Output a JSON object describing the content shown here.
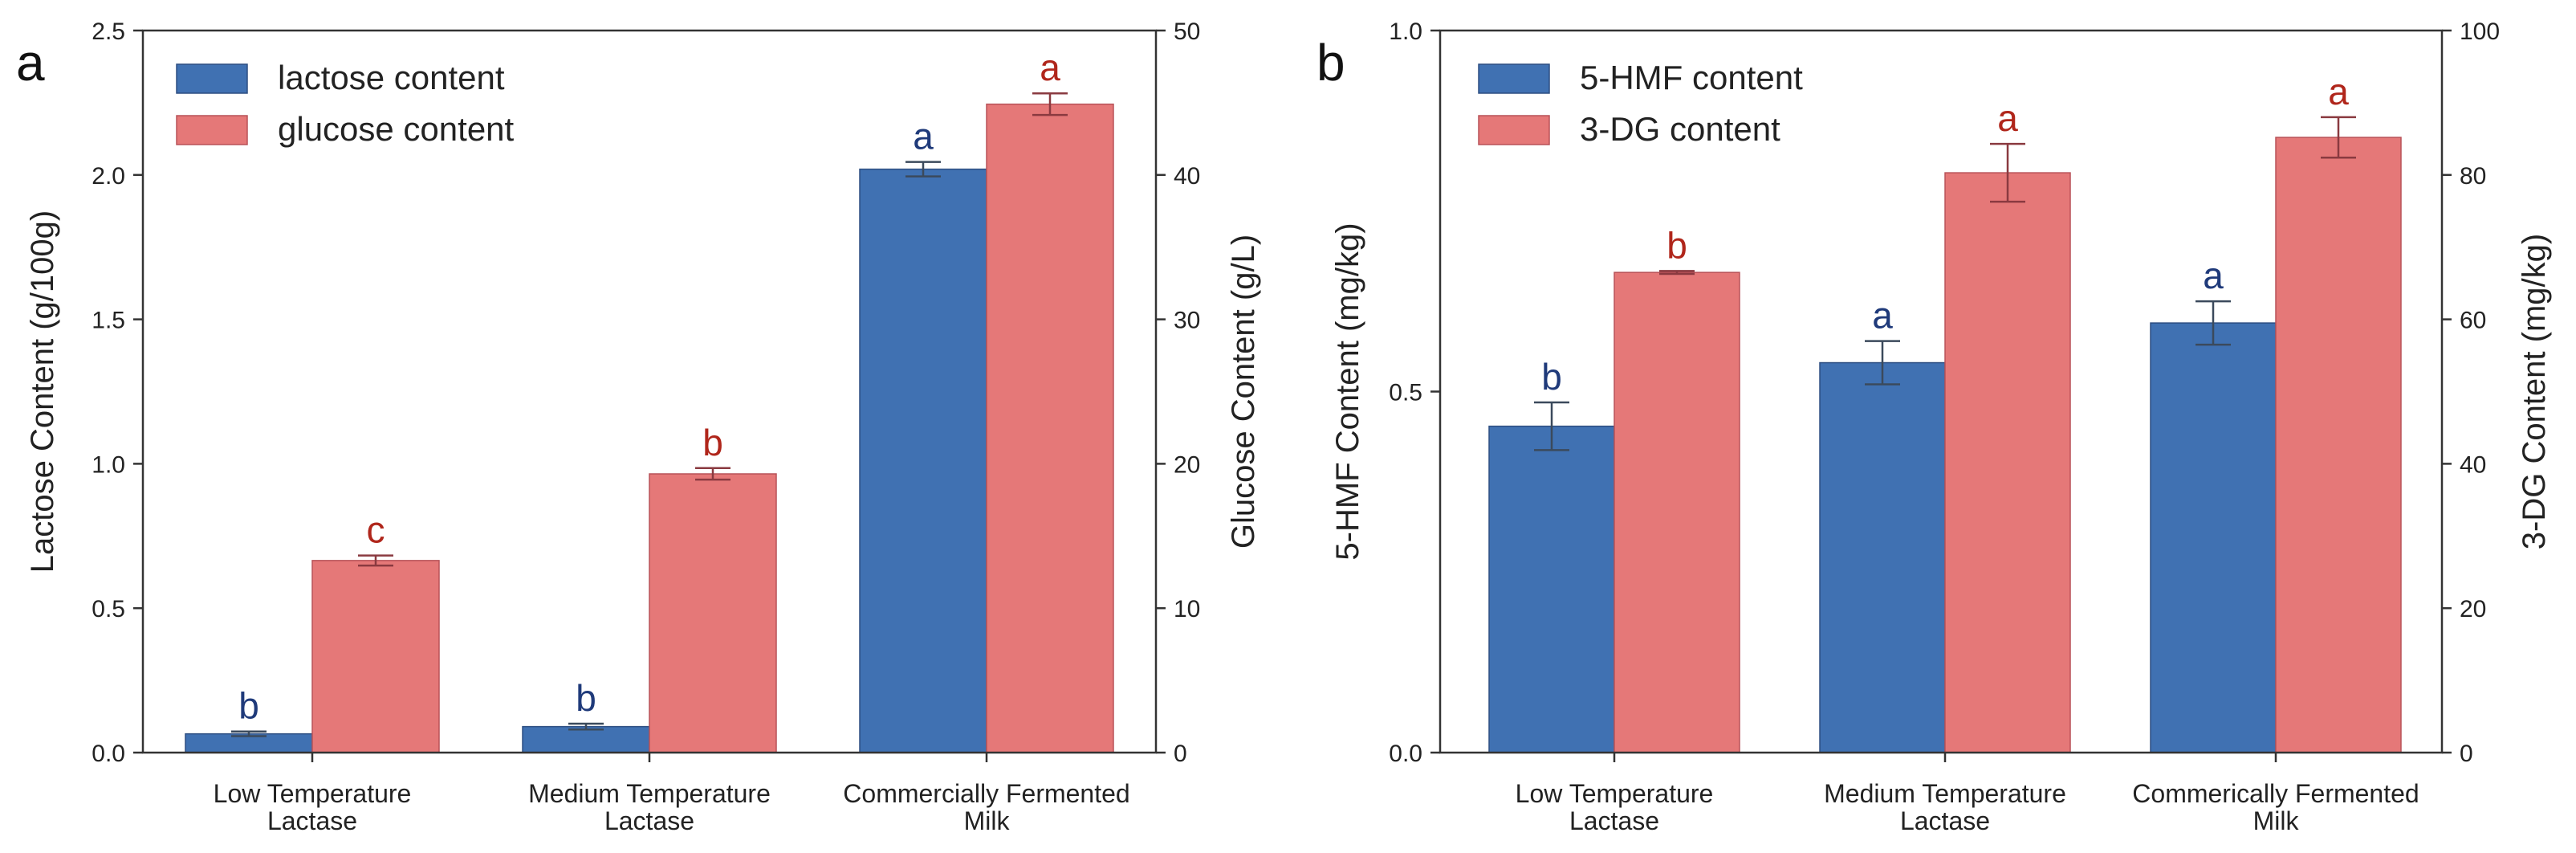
{
  "colors": {
    "blue": "#4071b2",
    "red": "#e57878",
    "blue_label": "#1f3a7a",
    "red_label": "#b0261b",
    "blue_edge": "#2e4f82",
    "red_edge": "#b85258",
    "err_blue": "#3b4a5c",
    "err_red": "#8a3a40"
  },
  "chart_data": [
    {
      "panel": "a",
      "type": "bar",
      "categories": [
        [
          "Low Temperature",
          "Lactase"
        ],
        [
          "Medium Temperature",
          "Lactase"
        ],
        [
          "Commercially Fermented",
          "Milk"
        ]
      ],
      "ylabel_left": "Lactose Content (g/100g)",
      "ylabel_right": "Glucose Content (g/L)",
      "ylim_left": [
        0,
        2.5
      ],
      "ylim_right": [
        0,
        50
      ],
      "yticks_left": [
        "0.0",
        "0.5",
        "1.0",
        "1.5",
        "2.0",
        "2.5"
      ],
      "yticks_right": [
        "0",
        "10",
        "20",
        "30",
        "40",
        "50"
      ],
      "legend_position": "top-left",
      "grid": false,
      "series": [
        {
          "name": "lactose content",
          "axis": "left",
          "color": "blue",
          "values": [
            0.065,
            0.09,
            2.02
          ],
          "errors": [
            0.008,
            0.01,
            0.025
          ],
          "letters": [
            "b",
            "b",
            "a"
          ]
        },
        {
          "name": "glucose content",
          "axis": "right",
          "color": "red",
          "values": [
            13.3,
            19.3,
            44.9
          ],
          "errors": [
            0.35,
            0.4,
            0.75
          ],
          "letters": [
            "c",
            "b",
            "a"
          ]
        }
      ]
    },
    {
      "panel": "b",
      "type": "bar",
      "categories": [
        [
          "Low Temperature",
          "Lactase"
        ],
        [
          "Medium Temperature",
          "Lactase"
        ],
        [
          "Commerically Fermented",
          "Milk"
        ]
      ],
      "ylabel_left": "5-HMF Content (mg/kg)",
      "ylabel_right": "3-DG Content (mg/kg)",
      "ylim_left": [
        0,
        1.0
      ],
      "ylim_right": [
        0,
        100
      ],
      "yticks_left": [
        "0.0",
        "0.5",
        "1.0"
      ],
      "yticks_right": [
        "0",
        "20",
        "40",
        "60",
        "80",
        "100"
      ],
      "legend_position": "top-left",
      "grid": false,
      "series": [
        {
          "name": "5-HMF content",
          "axis": "left",
          "color": "blue",
          "values": [
            0.452,
            0.54,
            0.595
          ],
          "errors": [
            0.033,
            0.03,
            0.03
          ],
          "letters": [
            "b",
            "a",
            "a"
          ]
        },
        {
          "name": "3-DG content",
          "axis": "right",
          "color": "red",
          "values": [
            66.5,
            80.3,
            85.2
          ],
          "errors": [
            0.2,
            4.0,
            2.8
          ],
          "letters": [
            "b",
            "a",
            "a"
          ]
        }
      ]
    }
  ]
}
